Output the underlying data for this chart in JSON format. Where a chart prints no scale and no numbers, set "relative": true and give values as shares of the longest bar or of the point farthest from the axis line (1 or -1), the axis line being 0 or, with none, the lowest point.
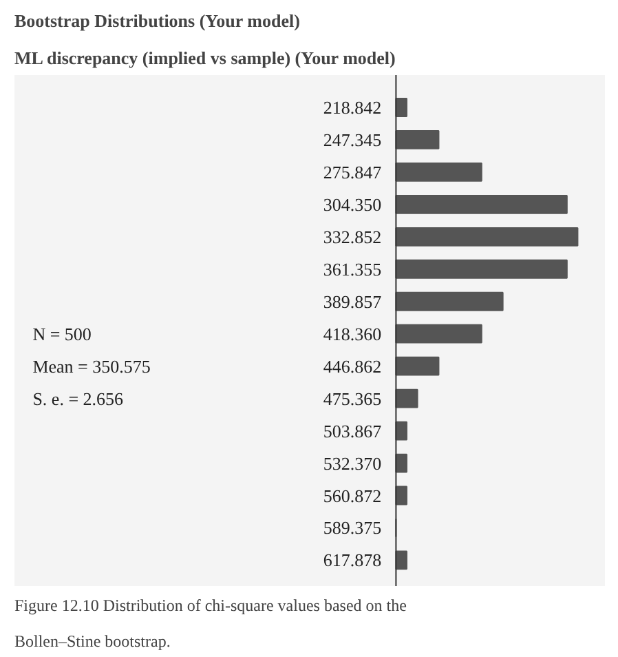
{
  "chart_data": {
    "type": "bar",
    "orientation": "horizontal",
    "relative": true,
    "title": "Bootstrap Distributions (Your model)",
    "subtitle": "ML discrepancy (implied vs sample) (Your model)",
    "categories": [
      "218.842",
      "247.345",
      "275.847",
      "304.350",
      "332.852",
      "361.355",
      "389.857",
      "418.360",
      "446.862",
      "475.365",
      "503.867",
      "532.370",
      "560.872",
      "589.375",
      "617.878"
    ],
    "values": [
      0.059,
      0.235,
      0.471,
      0.941,
      1,
      0.941,
      0.588,
      0.471,
      0.235,
      0.118,
      0.059,
      0.059,
      0.059,
      0,
      0.059
    ],
    "color": "#555555",
    "grid": false,
    "annotations": [
      "N = 500",
      "Mean = 350.575",
      "S. e. = 2.656",
      "Figure 12.10 Distribution of chi-square values based on the Bollen–Stine bootstrap."
    ]
  }
}
